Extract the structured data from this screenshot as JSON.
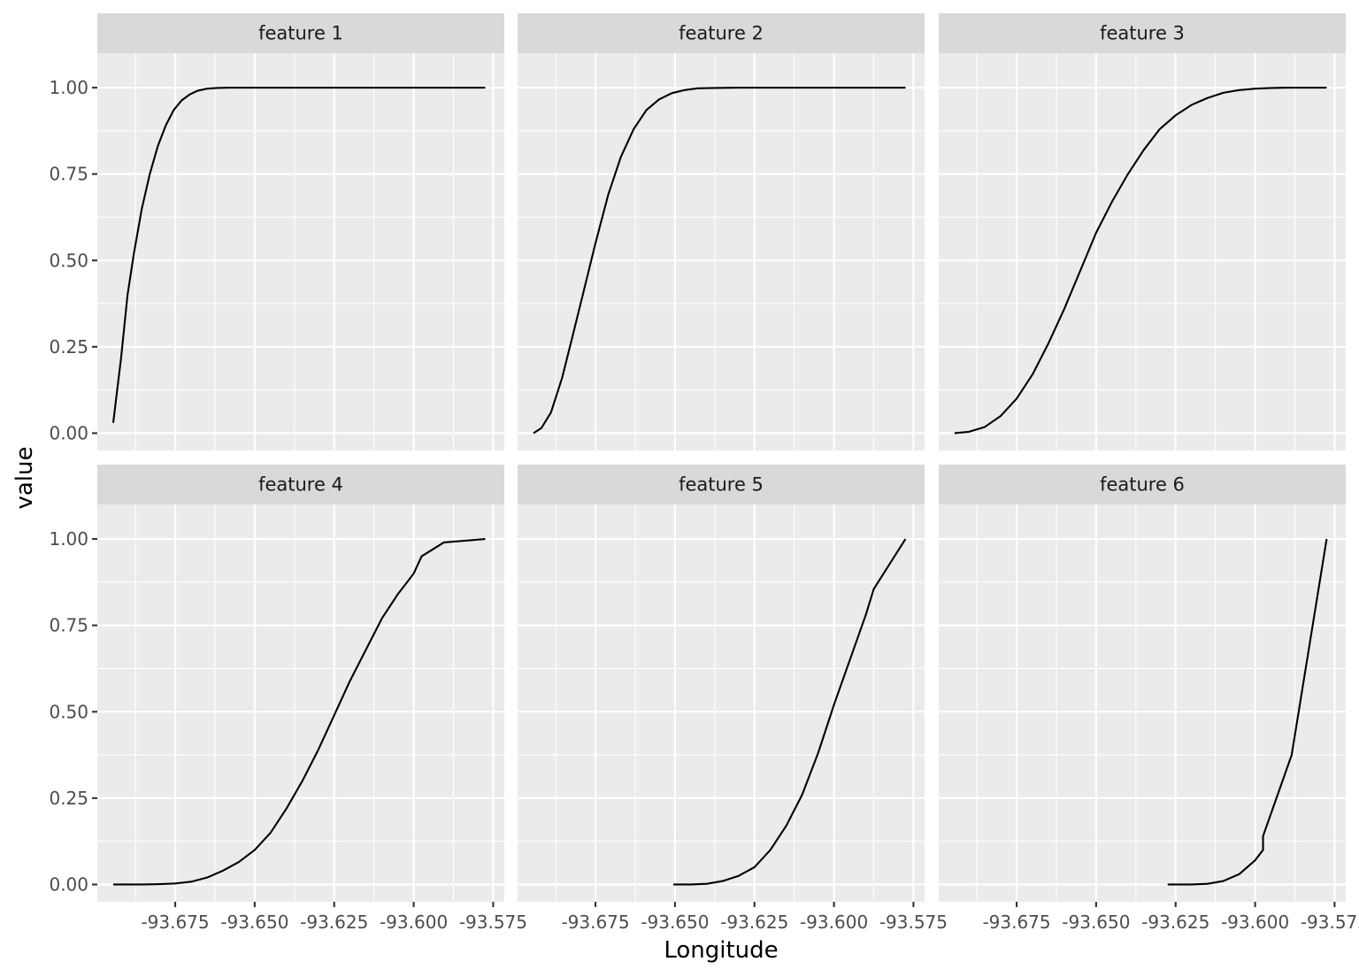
{
  "chart_data": {
    "type": "line",
    "facet_layout": "2x3 grid",
    "xlabel": "Longitude",
    "ylabel": "value",
    "xlim": [
      -93.6995,
      -93.5715
    ],
    "ylim": [
      -0.05,
      1.1
    ],
    "x_ticks": [
      -93.675,
      -93.65,
      -93.625,
      -93.6,
      -93.575
    ],
    "x_tick_labels": [
      "-93.675",
      "-93.650",
      "-93.625",
      "-93.600",
      "-93.575"
    ],
    "y_ticks": [
      0,
      0.25,
      0.5,
      0.75,
      1
    ],
    "y_tick_labels": [
      "0.00",
      "0.25",
      "0.50",
      "0.75",
      "1.00"
    ],
    "grid": true,
    "line_color": "#000000",
    "panel_background": "#ebebeb",
    "strip_background": "#d9d9d9",
    "facets": [
      {
        "label": "feature 1",
        "x": [
          -93.6945,
          -93.692,
          -93.69,
          -93.688,
          -93.6855,
          -93.683,
          -93.6805,
          -93.678,
          -93.6755,
          -93.673,
          -93.6705,
          -93.668,
          -93.665,
          -93.662,
          -93.658,
          -93.65,
          -93.63,
          -93.6,
          -93.5775
        ],
        "y": [
          0.03,
          0.22,
          0.4,
          0.52,
          0.65,
          0.75,
          0.83,
          0.89,
          0.935,
          0.963,
          0.98,
          0.991,
          0.997,
          0.999,
          1.0,
          1.0,
          1.0,
          1.0,
          1.0
        ]
      },
      {
        "label": "feature 2",
        "x": [
          -93.6945,
          -93.692,
          -93.689,
          -93.6855,
          -93.6825,
          -93.679,
          -93.675,
          -93.671,
          -93.667,
          -93.663,
          -93.659,
          -93.655,
          -93.651,
          -93.647,
          -93.643,
          -93.638,
          -93.63,
          -93.615,
          -93.6,
          -93.5775
        ],
        "y": [
          0.0,
          0.015,
          0.06,
          0.16,
          0.27,
          0.4,
          0.55,
          0.69,
          0.8,
          0.88,
          0.935,
          0.966,
          0.984,
          0.993,
          0.998,
          0.999,
          1.0,
          1.0,
          1.0,
          1.0
        ]
      },
      {
        "label": "feature 3",
        "x": [
          -93.6945,
          -93.69,
          -93.685,
          -93.68,
          -93.675,
          -93.67,
          -93.665,
          -93.66,
          -93.655,
          -93.65,
          -93.645,
          -93.64,
          -93.635,
          -93.63,
          -93.625,
          -93.62,
          -93.615,
          -93.61,
          -93.605,
          -93.6,
          -93.595,
          -93.59,
          -93.585,
          -93.5775
        ],
        "y": [
          0.0,
          0.004,
          0.018,
          0.05,
          0.1,
          0.17,
          0.26,
          0.36,
          0.47,
          0.58,
          0.67,
          0.75,
          0.82,
          0.88,
          0.92,
          0.95,
          0.97,
          0.985,
          0.993,
          0.997,
          0.999,
          1.0,
          1.0,
          1.0
        ]
      },
      {
        "label": "feature 4",
        "x": [
          -93.6945,
          -93.685,
          -93.68,
          -93.675,
          -93.67,
          -93.665,
          -93.66,
          -93.655,
          -93.65,
          -93.645,
          -93.64,
          -93.635,
          -93.63,
          -93.625,
          -93.62,
          -93.615,
          -93.61,
          -93.605,
          -93.6,
          -93.5975,
          -93.5905,
          -93.5775
        ],
        "y": [
          0.0,
          0.0,
          0.001,
          0.003,
          0.008,
          0.02,
          0.04,
          0.065,
          0.1,
          0.15,
          0.22,
          0.3,
          0.39,
          0.49,
          0.59,
          0.68,
          0.77,
          0.84,
          0.9,
          0.95,
          0.99,
          1.0
        ]
      },
      {
        "label": "feature 5",
        "x": [
          -93.6505,
          -93.645,
          -93.64,
          -93.635,
          -93.63,
          -93.625,
          -93.62,
          -93.615,
          -93.61,
          -93.605,
          -93.6,
          -93.595,
          -93.59,
          -93.5875,
          -93.5775
        ],
        "y": [
          0.0,
          0.0,
          0.002,
          0.01,
          0.025,
          0.05,
          0.1,
          0.17,
          0.26,
          0.38,
          0.52,
          0.65,
          0.78,
          0.855,
          1.0
        ]
      },
      {
        "label": "feature 6",
        "x": [
          -93.6275,
          -93.62,
          -93.615,
          -93.61,
          -93.605,
          -93.6,
          -93.5975,
          -93.5975,
          -93.5885,
          -93.5775
        ],
        "y": [
          0.0,
          0.0,
          0.002,
          0.01,
          0.03,
          0.07,
          0.1,
          0.14,
          0.375,
          1.0
        ]
      }
    ]
  }
}
